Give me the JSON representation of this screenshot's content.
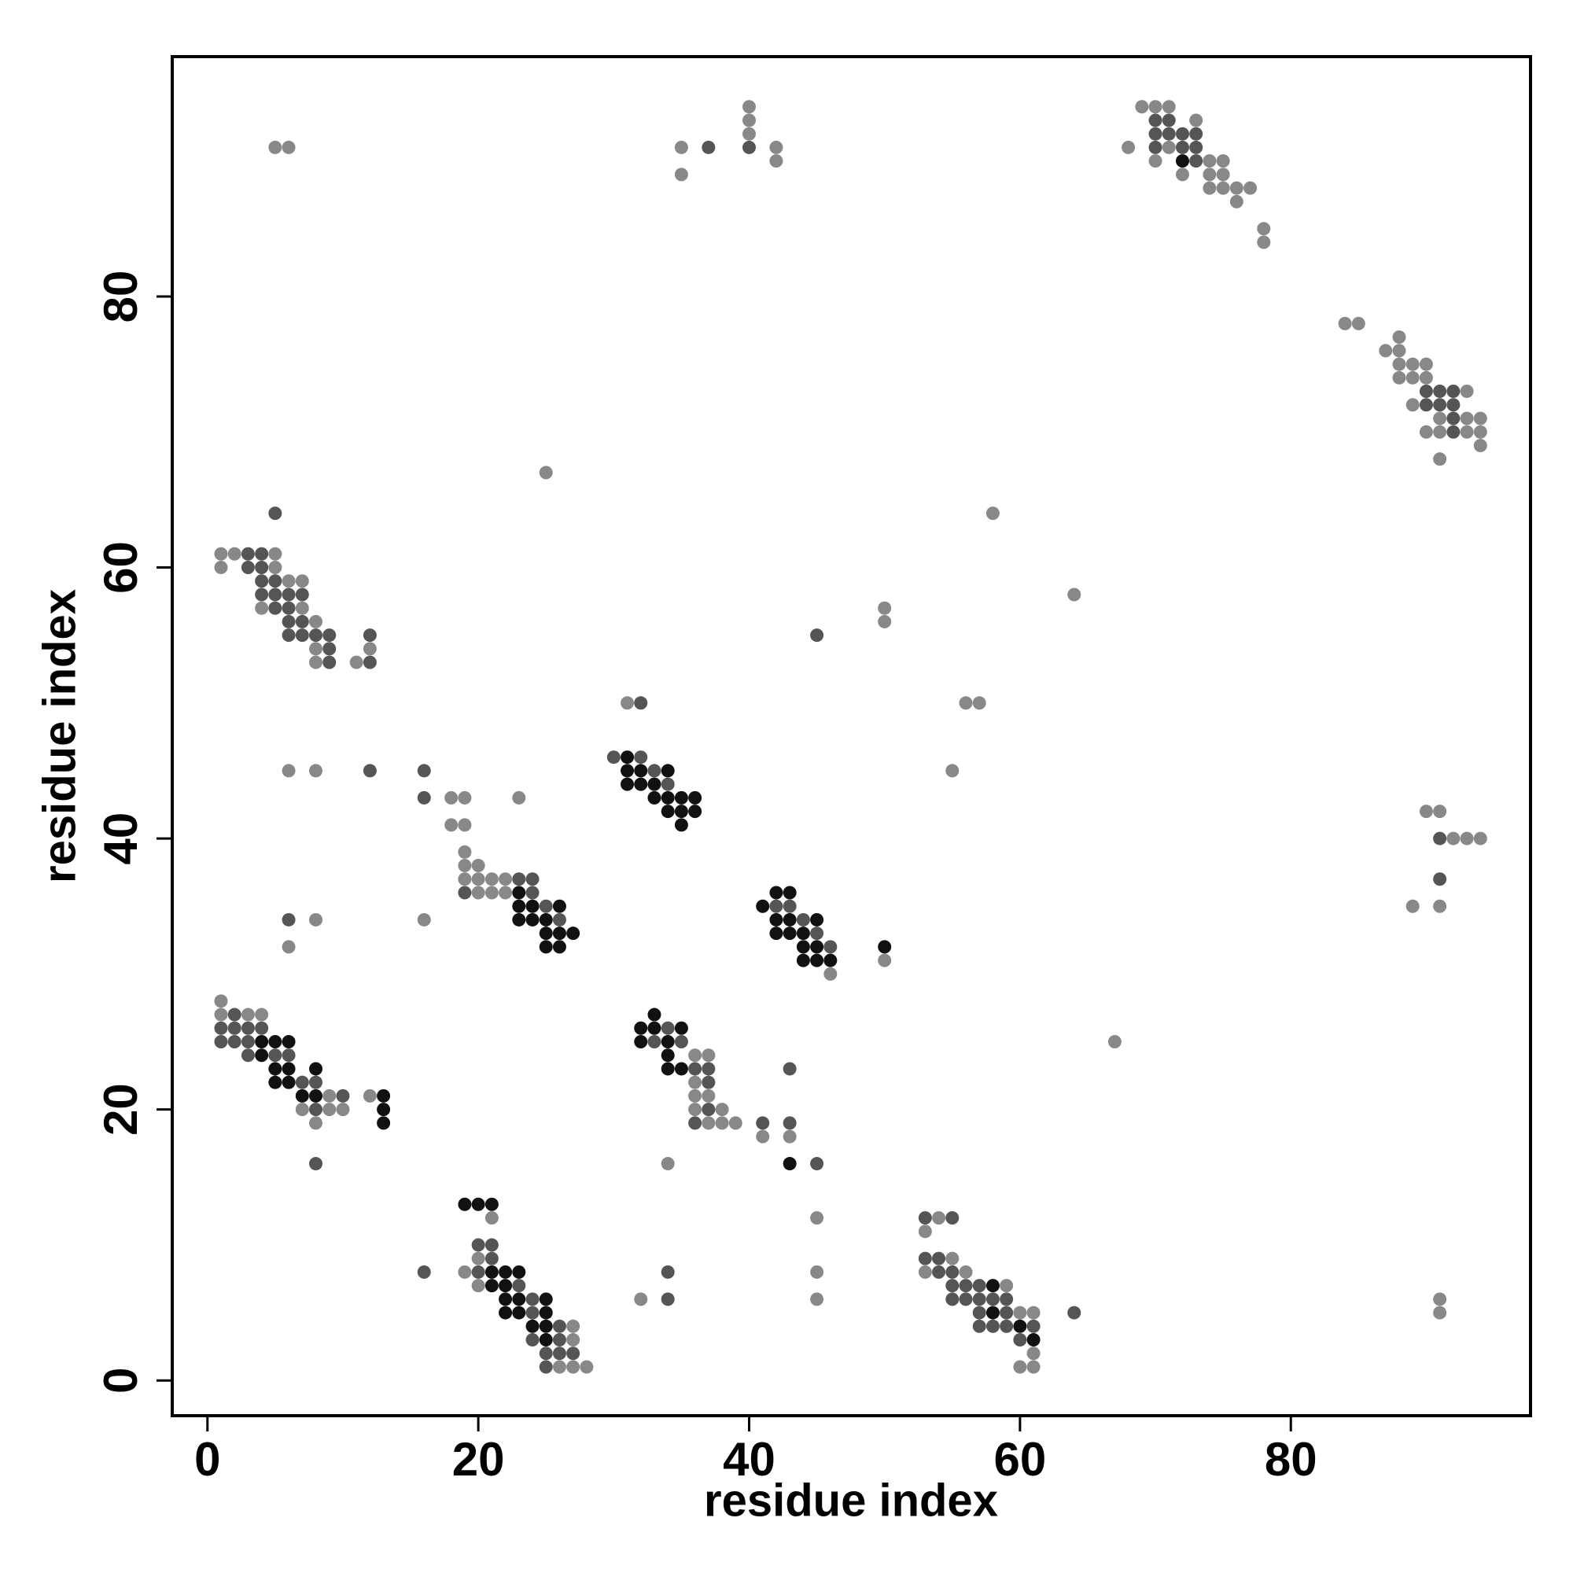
{
  "chart_data": {
    "type": "scatter",
    "xlabel": "residue index",
    "ylabel": "residue index",
    "xlim": [
      -2.6,
      97.7
    ],
    "ylim": [
      -2.6,
      97.7
    ],
    "xticks": [
      0,
      20,
      40,
      60,
      80
    ],
    "yticks": [
      0,
      20,
      40,
      60,
      80
    ],
    "series": [
      {
        "color": "#888888",
        "x": [
          5,
          6,
          35,
          35,
          40,
          40,
          40,
          42,
          42,
          68,
          69,
          70,
          70,
          71,
          71,
          72,
          73,
          74,
          74,
          74,
          75,
          75,
          75,
          76,
          76,
          77,
          78,
          78,
          84,
          85,
          87,
          88,
          88,
          88,
          88,
          89,
          89,
          89,
          90,
          90,
          90,
          91,
          91,
          91,
          93,
          93,
          93,
          94,
          94,
          94,
          1,
          1,
          2,
          4,
          5,
          5,
          6,
          7,
          7,
          8,
          8,
          8,
          11,
          12,
          25,
          58,
          64,
          50,
          50,
          31,
          56,
          57,
          55,
          6,
          8,
          46,
          50,
          8,
          6,
          16,
          67,
          18,
          19,
          18,
          19,
          23,
          19,
          19,
          19,
          20,
          20,
          20,
          21,
          21,
          22,
          22,
          90,
          91,
          92,
          93,
          94,
          89,
          91,
          1,
          1,
          3,
          4,
          7,
          8,
          9,
          9,
          10,
          12,
          36,
          36,
          36,
          36,
          37,
          37,
          37,
          38,
          38,
          39,
          41,
          43,
          34,
          21,
          20,
          19,
          20,
          27,
          27,
          26,
          27,
          28,
          45,
          45,
          45,
          32,
          91,
          91,
          54,
          53,
          55,
          53,
          56,
          59,
          60,
          61,
          61,
          60,
          61
        ],
        "values": [
          91,
          91,
          91,
          89,
          94,
          93,
          92,
          91,
          90,
          91,
          94,
          94,
          90,
          94,
          91,
          89,
          93,
          90,
          89,
          88,
          90,
          89,
          88,
          88,
          87,
          88,
          85,
          84,
          78,
          78,
          76,
          77,
          76,
          75,
          74,
          75,
          74,
          72,
          75,
          74,
          70,
          71,
          70,
          68,
          73,
          71,
          70,
          71,
          70,
          69,
          61,
          60,
          61,
          57,
          61,
          60,
          59,
          59,
          57,
          56,
          54,
          53,
          53,
          54,
          67,
          64,
          58,
          57,
          56,
          50,
          50,
          50,
          45,
          45,
          45,
          30,
          31,
          34,
          32,
          34,
          25,
          43,
          43,
          41,
          41,
          43,
          39,
          38,
          37,
          38,
          37,
          36,
          37,
          36,
          37,
          36,
          42,
          42,
          40,
          40,
          40,
          35,
          35,
          28,
          27,
          27,
          27,
          20,
          19,
          21,
          20,
          20,
          21,
          24,
          22,
          21,
          20,
          24,
          21,
          19,
          20,
          19,
          19,
          18,
          18,
          16,
          12,
          9,
          8,
          7,
          4,
          3,
          1,
          1,
          1,
          12,
          8,
          6,
          6,
          6,
          5,
          12,
          11,
          9,
          8,
          8,
          7,
          5,
          5,
          2,
          1,
          1
        ]
      },
      {
        "color": "#555555",
        "x": [
          37,
          40,
          70,
          70,
          70,
          71,
          71,
          72,
          72,
          73,
          73,
          73,
          90,
          90,
          91,
          91,
          92,
          92,
          92,
          92,
          3,
          3,
          4,
          4,
          4,
          4,
          5,
          5,
          5,
          5,
          6,
          6,
          6,
          6,
          7,
          7,
          7,
          8,
          9,
          9,
          9,
          12,
          12,
          45,
          32,
          12,
          16,
          16,
          30,
          32,
          33,
          34,
          19,
          23,
          24,
          24,
          25,
          26,
          42,
          43,
          44,
          45,
          46,
          6,
          91,
          91,
          1,
          1,
          2,
          2,
          2,
          3,
          3,
          3,
          4,
          5,
          6,
          7,
          8,
          8,
          10,
          8,
          33,
          34,
          35,
          36,
          36,
          37,
          37,
          37,
          41,
          43,
          43,
          45,
          20,
          21,
          21,
          20,
          23,
          24,
          24,
          26,
          24,
          26,
          25,
          26,
          27,
          25,
          16,
          34,
          34,
          64,
          53,
          55,
          53,
          54,
          54,
          55,
          55,
          56,
          57,
          55,
          56,
          57,
          58,
          59,
          57,
          59,
          57,
          58,
          59,
          61,
          60
        ],
        "values": [
          91,
          91,
          93,
          92,
          91,
          93,
          92,
          92,
          91,
          92,
          91,
          90,
          73,
          72,
          73,
          72,
          73,
          72,
          71,
          70,
          61,
          60,
          61,
          60,
          59,
          58,
          64,
          59,
          58,
          57,
          58,
          57,
          56,
          55,
          58,
          56,
          55,
          55,
          55,
          54,
          53,
          55,
          53,
          55,
          50,
          45,
          45,
          43,
          46,
          46,
          45,
          44,
          36,
          37,
          37,
          36,
          35,
          34,
          35,
          35,
          34,
          33,
          32,
          34,
          40,
          37,
          26,
          25,
          27,
          26,
          25,
          26,
          25,
          24,
          26,
          24,
          24,
          22,
          22,
          20,
          21,
          16,
          25,
          26,
          25,
          23,
          19,
          23,
          22,
          20,
          19,
          23,
          19,
          16,
          10,
          10,
          9,
          8,
          7,
          6,
          5,
          4,
          3,
          3,
          2,
          2,
          2,
          1,
          8,
          8,
          6,
          5,
          12,
          12,
          9,
          9,
          8,
          8,
          7,
          7,
          7,
          6,
          6,
          6,
          6,
          6,
          5,
          5,
          4,
          4,
          4,
          4,
          3
        ]
      },
      {
        "color": "#111111",
        "x": [
          72,
          31,
          31,
          31,
          32,
          32,
          33,
          33,
          34,
          34,
          34,
          35,
          35,
          35,
          36,
          36,
          23,
          23,
          23,
          24,
          24,
          25,
          25,
          25,
          26,
          26,
          26,
          27,
          41,
          42,
          42,
          42,
          43,
          43,
          43,
          44,
          44,
          44,
          45,
          45,
          45,
          46,
          50,
          4,
          4,
          5,
          5,
          5,
          6,
          6,
          6,
          7,
          8,
          8,
          13,
          13,
          13,
          32,
          32,
          33,
          33,
          34,
          34,
          34,
          35,
          35,
          43,
          19,
          20,
          21,
          21,
          22,
          23,
          21,
          22,
          22,
          23,
          25,
          22,
          23,
          25,
          24,
          25,
          25,
          58,
          58,
          60,
          61
        ],
        "values": [
          90,
          46,
          45,
          44,
          45,
          44,
          44,
          43,
          45,
          43,
          42,
          43,
          42,
          41,
          43,
          42,
          36,
          35,
          34,
          35,
          34,
          34,
          33,
          32,
          35,
          33,
          32,
          33,
          35,
          36,
          34,
          33,
          36,
          34,
          33,
          33,
          32,
          31,
          34,
          32,
          31,
          31,
          32,
          25,
          24,
          25,
          23,
          22,
          25,
          23,
          22,
          21,
          23,
          21,
          21,
          20,
          19,
          26,
          25,
          27,
          26,
          25,
          24,
          23,
          26,
          23,
          16,
          13,
          13,
          13,
          8,
          8,
          8,
          7,
          7,
          6,
          6,
          6,
          5,
          5,
          5,
          4,
          4,
          3,
          7,
          5,
          4,
          3
        ]
      }
    ]
  }
}
